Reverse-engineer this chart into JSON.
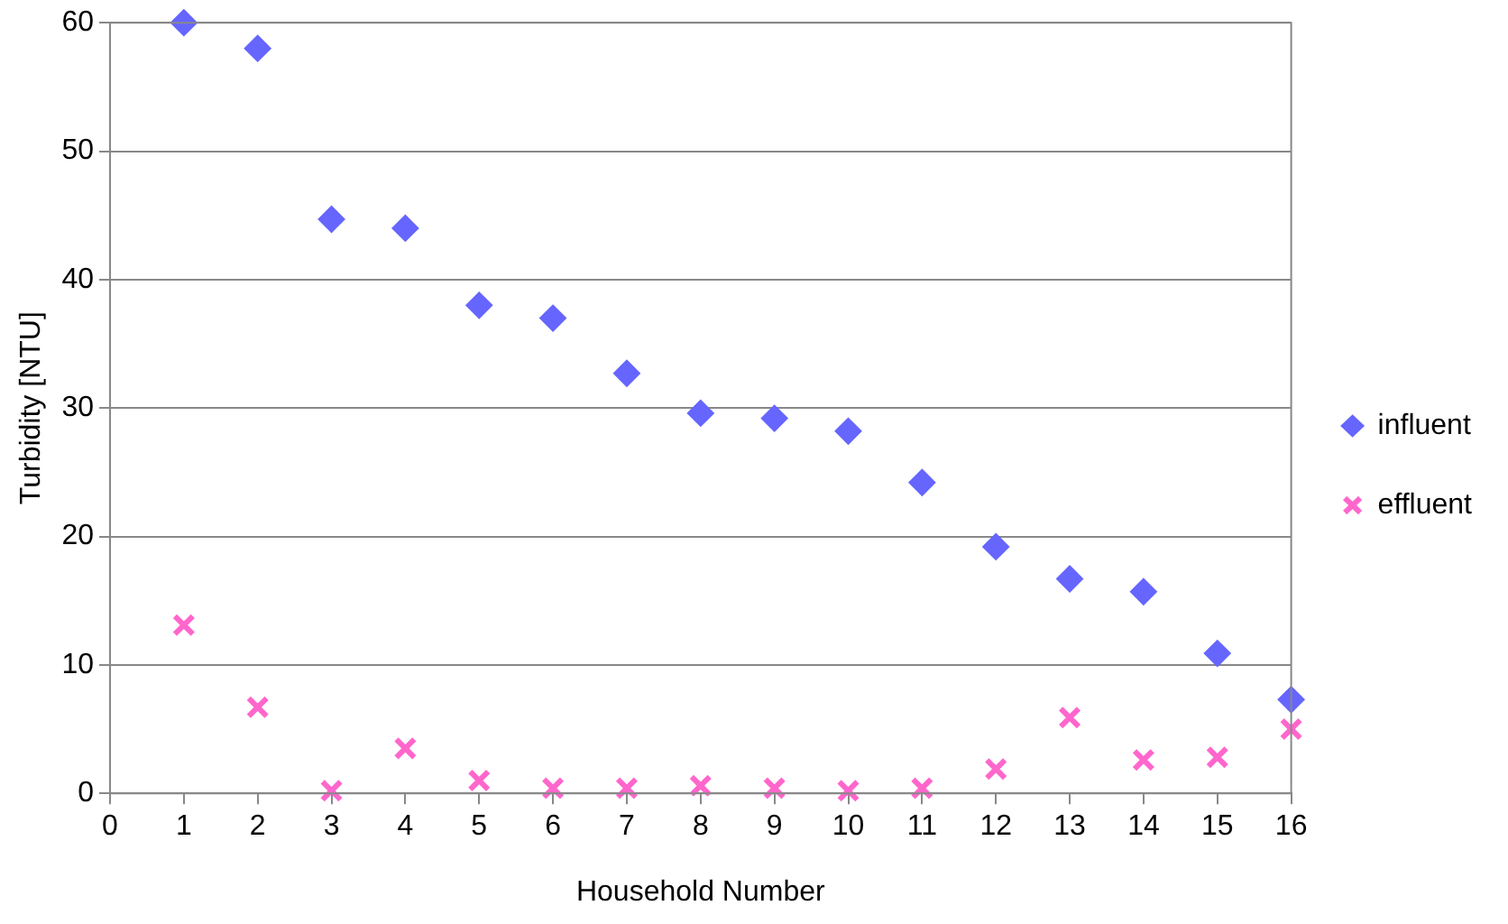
{
  "chart_data": {
    "type": "scatter",
    "xlabel": "Household Number",
    "ylabel": "Turbidity [NTU]",
    "x": [
      1,
      2,
      3,
      4,
      5,
      6,
      7,
      8,
      9,
      10,
      11,
      12,
      13,
      14,
      15,
      16
    ],
    "series": [
      {
        "name": "influent",
        "color": "#6666ff",
        "marker": "diamond",
        "values": [
          60,
          58,
          44.7,
          44.0,
          38.0,
          37.0,
          32.7,
          29.6,
          29.2,
          28.2,
          24.2,
          19.2,
          16.7,
          15.7,
          10.9,
          7.3
        ]
      },
      {
        "name": "effluent",
        "color": "#ff66cc",
        "marker": "cross",
        "values": [
          13.1,
          6.7,
          0.2,
          3.5,
          1.0,
          0.4,
          0.4,
          0.6,
          0.4,
          0.2,
          0.4,
          1.9,
          5.9,
          2.6,
          2.8,
          5.0
        ]
      }
    ],
    "xlim": [
      0,
      16
    ],
    "xticks": [
      0,
      1,
      2,
      3,
      4,
      5,
      6,
      7,
      8,
      9,
      10,
      11,
      12,
      13,
      14,
      15,
      16
    ],
    "ylim": [
      0,
      60
    ],
    "yticks": [
      0,
      10,
      20,
      30,
      40,
      50,
      60
    ],
    "grid": "y",
    "legend": "right"
  }
}
